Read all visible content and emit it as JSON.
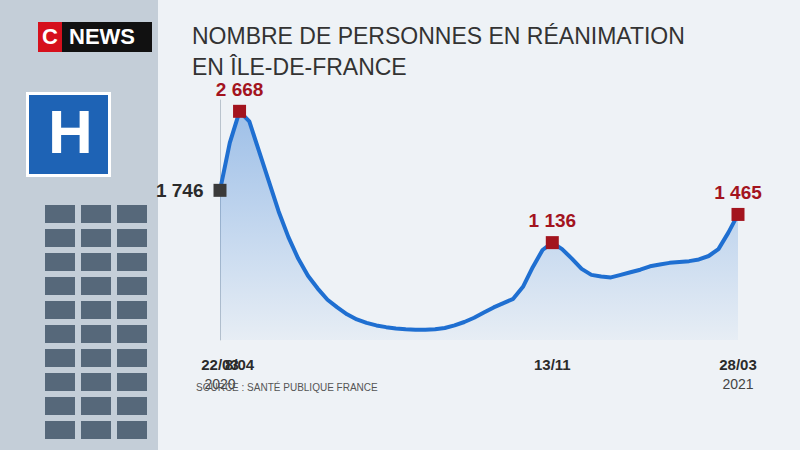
{
  "chart_data": {
    "type": "line",
    "title": "NOMBRE DE PERSONNES EN RÉANIMATION\nEN ÎLE-DE-FRANCE",
    "source": "SOURCE : SANTÉ PUBLIQUE FRANCE",
    "categories": [
      "22/03\n2020",
      null,
      "8/04",
      null,
      null,
      null,
      null,
      null,
      null,
      null,
      null,
      null,
      null,
      null,
      null,
      null,
      null,
      null,
      null,
      null,
      null,
      null,
      null,
      null,
      null,
      null,
      null,
      null,
      null,
      null,
      null,
      null,
      null,
      null,
      "13/11",
      null,
      null,
      null,
      null,
      null,
      null,
      null,
      null,
      null,
      null,
      null,
      null,
      null,
      null,
      null,
      null,
      null,
      null,
      "28/03\n2021"
    ],
    "values": [
      1746,
      2300,
      2668,
      2550,
      2200,
      1850,
      1500,
      1200,
      950,
      750,
      600,
      470,
      380,
      300,
      240,
      200,
      170,
      150,
      135,
      125,
      120,
      120,
      125,
      140,
      170,
      210,
      260,
      320,
      380,
      430,
      480,
      620,
      850,
      1050,
      1136,
      1060,
      950,
      830,
      760,
      740,
      730,
      760,
      790,
      820,
      860,
      880,
      900,
      910,
      920,
      940,
      980,
      1060,
      1250,
      1465
    ],
    "value_labels": [
      "1 746",
      null,
      "2 668",
      null,
      null,
      null,
      null,
      null,
      null,
      null,
      null,
      null,
      null,
      null,
      null,
      null,
      null,
      null,
      null,
      null,
      null,
      null,
      null,
      null,
      null,
      null,
      null,
      null,
      null,
      null,
      null,
      null,
      null,
      null,
      "1 136",
      null,
      null,
      null,
      null,
      null,
      null,
      null,
      null,
      null,
      null,
      null,
      null,
      null,
      null,
      null,
      null,
      null,
      null,
      "1 465"
    ],
    "color": "#1f6fd1",
    "marker": "square",
    "ylim": [
      0,
      2800
    ],
    "yticks": [],
    "tick_labels": "x",
    "grid": false,
    "data_labels": true
  },
  "page": {
    "logo": [
      "C",
      "NEWS"
    ],
    "sign": "H"
  }
}
